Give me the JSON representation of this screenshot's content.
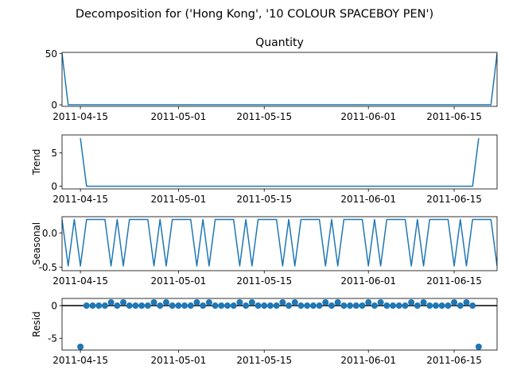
{
  "figure_title": "Decomposition for ('Hong Kong', '10 COLOUR SPACEBOY PEN')",
  "colors": {
    "line": "#1f77b4",
    "marker": "#1f77b4",
    "axis": "#000000",
    "zero_line": "#000000"
  },
  "chart_data": [
    {
      "type": "line",
      "panel": "observed",
      "title": "Quantity",
      "xlabel": "",
      "ylabel": "",
      "x_range": [
        "2011-04-12",
        "2011-06-22"
      ],
      "ylim": [
        -1.5,
        51
      ],
      "yticks": [
        0,
        50
      ],
      "xticks": [
        "2011-04-15",
        "2011-05-01",
        "2011-05-15",
        "2011-06-01",
        "2011-06-15"
      ],
      "series": [
        {
          "points": [
            [
              "2011-04-12",
              50
            ],
            [
              "2011-04-13",
              0
            ],
            [
              "2011-06-21",
              0
            ],
            [
              "2011-06-22",
              50
            ]
          ]
        }
      ]
    },
    {
      "type": "line",
      "panel": "trend",
      "title": "",
      "xlabel": "",
      "ylabel": "Trend",
      "x_range": [
        "2011-04-12",
        "2011-06-22"
      ],
      "ylim": [
        -0.4,
        7.7
      ],
      "yticks": [
        0,
        5
      ],
      "xticks": [
        "2011-04-15",
        "2011-05-01",
        "2011-05-15",
        "2011-06-01",
        "2011-06-15"
      ],
      "series": [
        {
          "points": [
            [
              "2011-04-15",
              7.2
            ],
            [
              "2011-04-16",
              0
            ],
            [
              "2011-06-18",
              0
            ],
            [
              "2011-06-19",
              7.2
            ]
          ]
        }
      ]
    },
    {
      "type": "line",
      "panel": "seasonal",
      "title": "",
      "xlabel": "",
      "ylabel": "Seasonal",
      "x_range": [
        "2011-04-12",
        "2011-06-22"
      ],
      "ylim": [
        -0.55,
        0.24
      ],
      "yticks": [
        0.0,
        -0.5
      ],
      "xticks": [
        "2011-04-15",
        "2011-05-01",
        "2011-05-15",
        "2011-06-01",
        "2011-06-15"
      ],
      "period": 7,
      "pattern": [
        0.2,
        -0.48,
        0.2,
        -0.48,
        0.2,
        0.2,
        0.2
      ],
      "series": [
        {
          "start": "2011-04-12",
          "end": "2011-06-22"
        }
      ]
    },
    {
      "type": "scatter",
      "panel": "resid",
      "title": "",
      "xlabel": "",
      "ylabel": "Resid",
      "x_range": [
        "2011-04-12",
        "2011-06-22"
      ],
      "ylim": [
        -6.8,
        1.1
      ],
      "yticks": [
        0,
        -5
      ],
      "xticks": [
        "2011-04-15",
        "2011-05-01",
        "2011-05-15",
        "2011-06-01",
        "2011-06-15"
      ],
      "zero_line": 0,
      "start": "2011-04-15",
      "end": "2011-06-19",
      "pattern": [
        0.5,
        0,
        0,
        0,
        0,
        0.5,
        0
      ],
      "first_value": -6.3,
      "last_value": -6.3
    }
  ]
}
